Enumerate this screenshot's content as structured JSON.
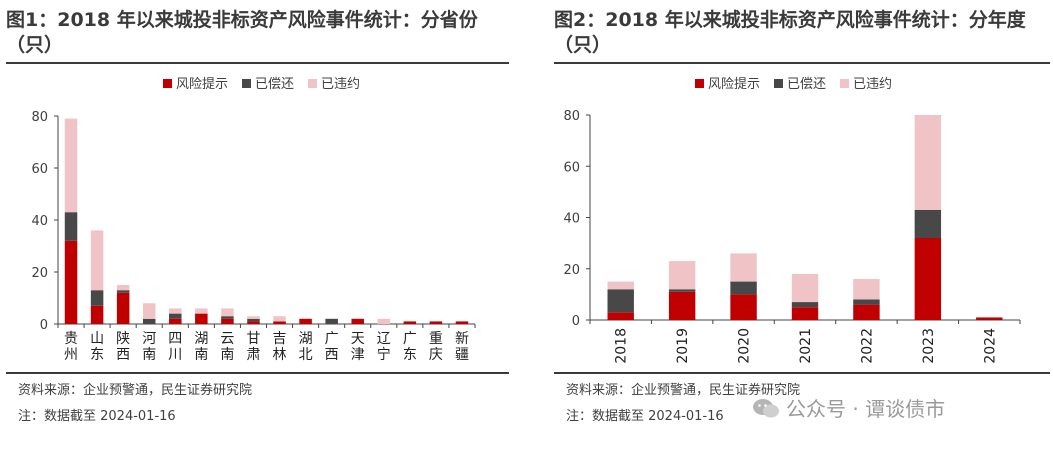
{
  "colors": {
    "risk": "#c00000",
    "repaid": "#484848",
    "defaulted": "#f0c4c6",
    "axis": "#444444",
    "text": "#404040"
  },
  "legend": [
    "风险提示",
    "已偿还",
    "已违约"
  ],
  "chart_data": [
    {
      "type": "bar",
      "stacked": true,
      "title": "图1：2018 年以来城投非标资产风险事件统计：分省份（只）",
      "categories": [
        "贵州",
        "山东",
        "陕西",
        "河南",
        "四川",
        "湖南",
        "云南",
        "甘肃",
        "吉林",
        "湖北",
        "广西",
        "天津",
        "辽宁",
        "广东",
        "重庆",
        "新疆"
      ],
      "series": [
        {
          "name": "风险提示",
          "values": [
            32,
            7,
            12,
            0,
            2,
            4,
            2,
            1,
            1,
            2,
            0,
            2,
            0,
            1,
            1,
            1
          ]
        },
        {
          "name": "已偿还",
          "values": [
            11,
            6,
            1,
            2,
            2,
            0,
            1,
            1,
            0,
            0,
            2,
            0,
            0,
            0,
            0,
            0
          ]
        },
        {
          "name": "已违约",
          "values": [
            36,
            23,
            2,
            6,
            2,
            2,
            3,
            1,
            2,
            0,
            0,
            0,
            2,
            0,
            0,
            0
          ]
        }
      ],
      "ylim": [
        0,
        80
      ],
      "yticks": [
        0,
        20,
        40,
        60,
        80
      ],
      "legend_position": "top",
      "grid": false
    },
    {
      "type": "bar",
      "stacked": true,
      "title": "图2：2018 年以来城投非标资产风险事件统计：分年度（只）",
      "categories": [
        "2018",
        "2019",
        "2020",
        "2021",
        "2022",
        "2023",
        "2024"
      ],
      "series": [
        {
          "name": "风险提示",
          "values": [
            3,
            11,
            10,
            5,
            6,
            32,
            1
          ]
        },
        {
          "name": "已偿还",
          "values": [
            9,
            1,
            5,
            2,
            2,
            11,
            0
          ]
        },
        {
          "name": "已违约",
          "values": [
            3,
            11,
            11,
            11,
            8,
            37,
            0
          ]
        }
      ],
      "ylim": [
        0,
        80
      ],
      "yticks": [
        0,
        20,
        40,
        60,
        80
      ],
      "legend_position": "top",
      "grid": false
    }
  ],
  "footer": {
    "source": "资料来源：企业预警通，民生证券研究院",
    "note": "注：数据截至 2024-01-16"
  },
  "watermark": "公众号 · 谭谈债市"
}
